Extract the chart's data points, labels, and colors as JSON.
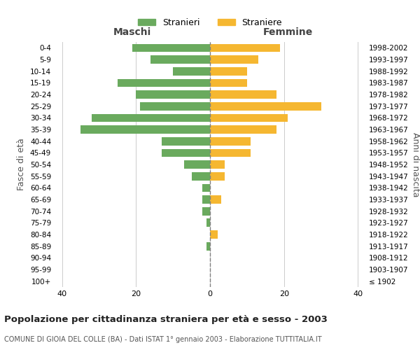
{
  "age_groups": [
    "100+",
    "95-99",
    "90-94",
    "85-89",
    "80-84",
    "75-79",
    "70-74",
    "65-69",
    "60-64",
    "55-59",
    "50-54",
    "45-49",
    "40-44",
    "35-39",
    "30-34",
    "25-29",
    "20-24",
    "15-19",
    "10-14",
    "5-9",
    "0-4"
  ],
  "birth_years": [
    "≤ 1902",
    "1903-1907",
    "1908-1912",
    "1913-1917",
    "1918-1922",
    "1923-1927",
    "1928-1932",
    "1933-1937",
    "1938-1942",
    "1943-1947",
    "1948-1952",
    "1953-1957",
    "1958-1962",
    "1963-1967",
    "1968-1972",
    "1973-1977",
    "1978-1982",
    "1983-1987",
    "1988-1992",
    "1993-1997",
    "1998-2002"
  ],
  "maschi": [
    0,
    0,
    0,
    1,
    0,
    1,
    2,
    2,
    2,
    5,
    7,
    13,
    13,
    35,
    32,
    19,
    20,
    25,
    10,
    16,
    21
  ],
  "femmine": [
    0,
    0,
    0,
    0,
    2,
    0,
    0,
    3,
    0,
    4,
    4,
    11,
    11,
    18,
    21,
    30,
    18,
    10,
    10,
    13,
    19
  ],
  "color_maschi": "#6aaa5e",
  "color_femmine": "#f5b731",
  "title": "Popolazione per cittadinanza straniera per età e sesso - 2003",
  "subtitle": "COMUNE DI GIOIA DEL COLLE (BA) - Dati ISTAT 1° gennaio 2003 - Elaborazione TUTTITALIA.IT",
  "xlabel_left": "Maschi",
  "xlabel_right": "Femmine",
  "ylabel_left": "Fasce di età",
  "ylabel_right": "Anni di nascita",
  "legend_maschi": "Stranieri",
  "legend_femmine": "Straniere",
  "xlim": 42,
  "background_color": "#ffffff",
  "grid_color": "#cccccc"
}
